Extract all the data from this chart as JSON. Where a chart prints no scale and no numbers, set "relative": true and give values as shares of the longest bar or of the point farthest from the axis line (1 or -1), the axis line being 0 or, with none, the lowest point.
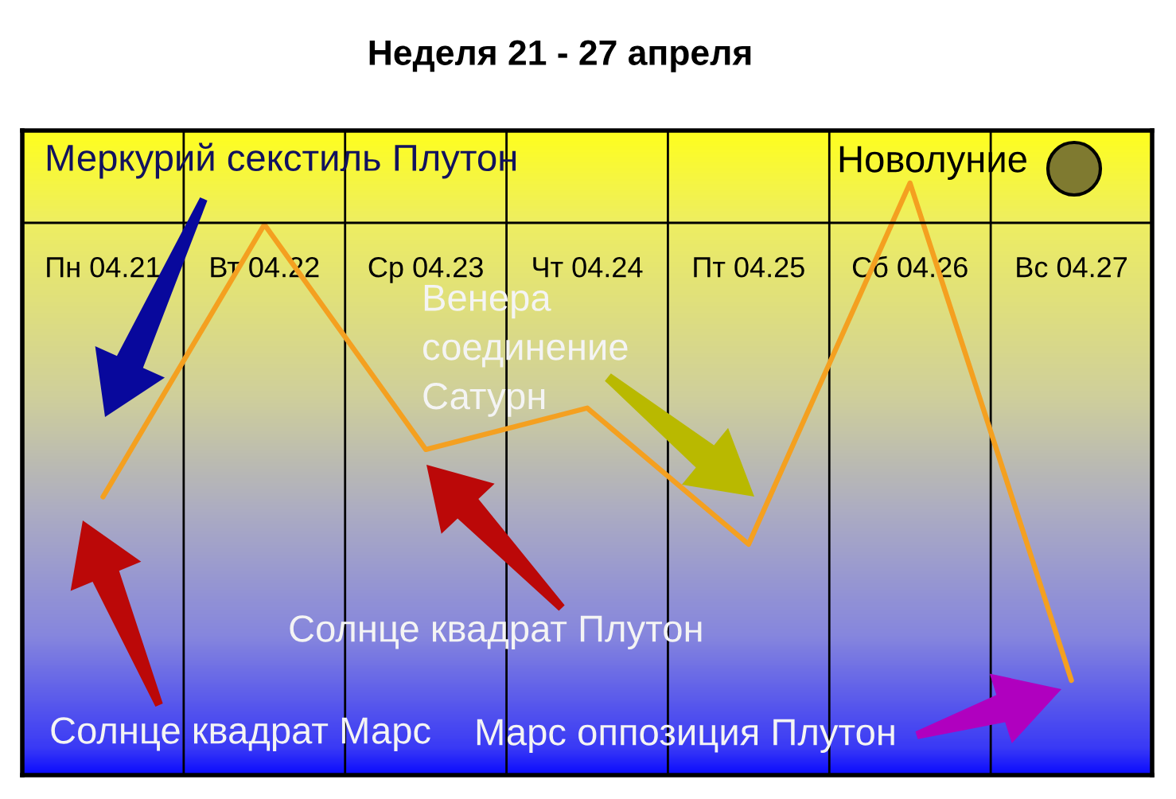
{
  "chart_data": {
    "type": "line",
    "title": "Неделя 21 - 27 апреля",
    "categories": [
      "Пн 04.21",
      "Вт 04.22",
      "Ср 04.23",
      "Чт 04.24",
      "Пт 04.25",
      "Сб 04.26",
      "Вс 04.27"
    ],
    "relative": true,
    "grid": "x",
    "series": [
      {
        "color": "#f4a020",
        "values": [
          0.47,
          0.93,
          0.55,
          0.62,
          0.39,
          1,
          0.16
        ]
      }
    ],
    "annotations": [
      "Меркурий секстиль Плутон",
      "Новолуние",
      "Венера соединение Сатурн",
      "Солнце квадрат Плутон",
      "Солнце квадрат Марс",
      "Марс оппозиция Плутон"
    ]
  }
}
